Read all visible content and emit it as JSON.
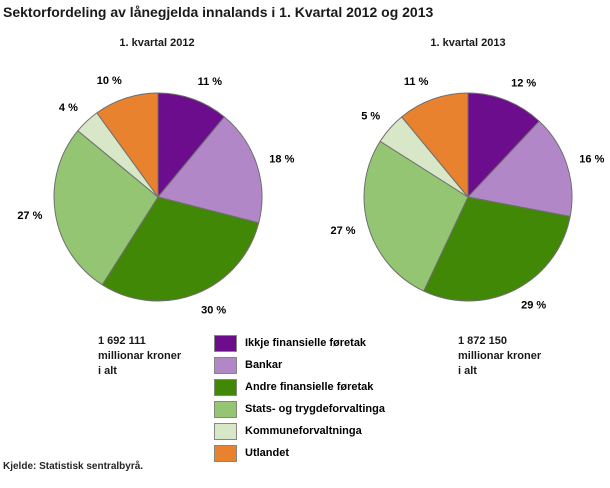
{
  "title": "Sektorfordeling av lånegjelda innalands i 1. Kvartal 2012 og 2013",
  "source": "Kjelde: Statistisk sentralbyrå.",
  "legend": {
    "items": [
      {
        "label": "Ikkje finansielle føretak",
        "color": "#6B0D8C"
      },
      {
        "label": "Bankar",
        "color": "#B287C8"
      },
      {
        "label": "Andre finansielle føretak",
        "color": "#418806"
      },
      {
        "label": "Stats- og trygdeforvaltinga",
        "color": "#93C572"
      },
      {
        "label": "Kommuneforvaltninga",
        "color": "#D9E7C9"
      },
      {
        "label": "Utlandet",
        "color": "#E9822E"
      }
    ]
  },
  "chart_data": [
    {
      "type": "pie",
      "title": "1. kvartal 2012",
      "total": "1 692 111\nmillionar kroner\ni alt",
      "categories": [
        "Ikkje finansielle føretak",
        "Bankar",
        "Andre finansielle føretak",
        "Stats- og trygdeforvaltinga",
        "Kommuneforvaltninga",
        "Utlandet"
      ],
      "values": [
        11,
        18,
        30,
        27,
        4,
        10
      ],
      "value_labels": [
        "11 %",
        "18 %",
        "30 %",
        "27 %",
        "4 %",
        "10 %"
      ],
      "colors": [
        "#6B0D8C",
        "#B287C8",
        "#418806",
        "#93C572",
        "#D9E7C9",
        "#E9822E"
      ],
      "start_angle": "12 o'clock",
      "direction": "clockwise"
    },
    {
      "type": "pie",
      "title": "1. kvartal 2013",
      "total": "1 872 150\nmillionar kroner\ni alt",
      "categories": [
        "Ikkje finansielle føretak",
        "Bankar",
        "Andre finansielle føretak",
        "Stats- og trygdeforvaltinga",
        "Kommuneforvaltninga",
        "Utlandet"
      ],
      "values": [
        12,
        16,
        29,
        27,
        5,
        11
      ],
      "value_labels": [
        "12 %",
        "16 %",
        "29 %",
        "27 %",
        "5 %",
        "11 %"
      ],
      "colors": [
        "#6B0D8C",
        "#B287C8",
        "#418806",
        "#93C572",
        "#D9E7C9",
        "#E9822E"
      ],
      "start_angle": "12 o'clock",
      "direction": "clockwise"
    }
  ]
}
